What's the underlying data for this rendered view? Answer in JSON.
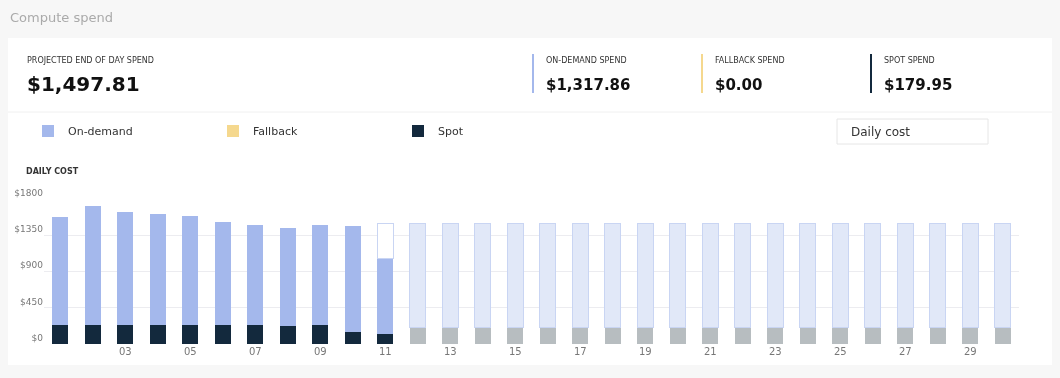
{
  "chart_data": {
    "type": "bar",
    "stacked": true,
    "title": "Compute spend",
    "ylabel": "DAILY COST",
    "categories": [
      null,
      null,
      "03",
      null,
      "05",
      null,
      "07",
      null,
      "09",
      null,
      "11",
      null,
      "13",
      null,
      "15",
      null,
      "17",
      null,
      "19",
      null,
      "21",
      null,
      "23",
      null,
      "25",
      null,
      "27",
      null,
      "29",
      null
    ],
    "series": [
      {
        "name": "Spot",
        "color": "#13293d",
        "values": [
          230,
          240,
          240,
          230,
          230,
          230,
          230,
          220,
          230,
          150,
          130,
          null,
          null,
          null,
          null,
          null,
          null,
          null,
          null,
          null,
          null,
          null,
          null,
          null,
          null,
          null,
          null,
          null,
          null,
          null
        ]
      },
      {
        "name": "Fallback",
        "color": "#f5d88e",
        "values": [
          0,
          0,
          0,
          0,
          0,
          0,
          0,
          0,
          0,
          0,
          0,
          null,
          null,
          null,
          null,
          null,
          null,
          null,
          null,
          null,
          null,
          null,
          null,
          null,
          null,
          null,
          null,
          null,
          null,
          null
        ]
      },
      {
        "name": "On-demand",
        "color": "#a4b8ec",
        "values": [
          1350,
          1470,
          1400,
          1380,
          1360,
          1280,
          1250,
          1220,
          1250,
          1320,
          930,
          null,
          null,
          null,
          null,
          null,
          null,
          null,
          null,
          null,
          null,
          null,
          null,
          null,
          null,
          null,
          null,
          null,
          null,
          null
        ]
      },
      {
        "color": "#b7bdc0",
        "values": [
          null,
          null,
          null,
          null,
          null,
          null,
          null,
          null,
          null,
          null,
          null,
          200,
          200,
          200,
          200,
          200,
          200,
          200,
          200,
          200,
          200,
          200,
          200,
          200,
          200,
          200,
          200,
          200,
          200,
          200
        ]
      },
      {
        "color": "#e1e8f8",
        "colors": [
          "#e1e8f8",
          "#e1e8f8",
          "#e1e8f8",
          "#e1e8f8",
          "#e1e8f8",
          "#e1e8f8",
          "#e1e8f8",
          "#e1e8f8",
          "#e1e8f8",
          "#e1e8f8",
          "#ffffff",
          "#e1e8f8",
          "#e1e8f8",
          "#e1e8f8",
          "#e1e8f8",
          "#e1e8f8",
          "#e1e8f8",
          "#e1e8f8",
          "#e1e8f8",
          "#e1e8f8",
          "#e1e8f8",
          "#e1e8f8",
          "#e1e8f8",
          "#e1e8f8",
          "#e1e8f8",
          "#e1e8f8",
          "#e1e8f8",
          "#e1e8f8",
          "#e1e8f8",
          "#e1e8f8"
        ],
        "values": [
          null,
          null,
          null,
          null,
          null,
          null,
          null,
          null,
          null,
          null,
          440,
          1300,
          1300,
          1300,
          1300,
          1300,
          1300,
          1300,
          1300,
          1300,
          1300,
          1300,
          1300,
          1300,
          1300,
          1300,
          1300,
          1300,
          1300,
          1300
        ]
      }
    ],
    "ylim": [
      0,
      1800
    ],
    "yticks": [
      {
        "value": 0,
        "label": "$0"
      },
      {
        "value": 450,
        "label": "$450"
      },
      {
        "value": 900,
        "label": "$900"
      },
      {
        "value": 1350,
        "label": "$1350"
      },
      {
        "value": 1800,
        "label": "$1800"
      }
    ],
    "grid": "y",
    "legend": "top left",
    "annotations": [
      "PROJECTED END OF DAY SPEND",
      "$1,497.81",
      "ON-DEMAND SPEND",
      "$1,317.86",
      "FALLBACK SPEND",
      "$0.00",
      "SPOT SPEND",
      "$179.95",
      "Daily cost"
    ]
  }
}
